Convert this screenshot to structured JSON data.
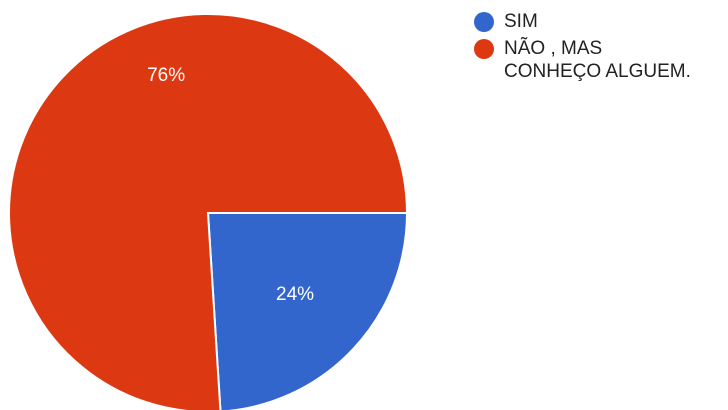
{
  "chart_data": {
    "type": "pie",
    "categories": [
      "SIM",
      "NÃO , MAS\nCONHEÇO ALGUEM."
    ],
    "values": [
      24,
      76
    ],
    "labels": [
      "24%",
      "76%"
    ],
    "colors": [
      "#3366cc",
      "#dc3912"
    ],
    "legend_position": "top-right"
  }
}
